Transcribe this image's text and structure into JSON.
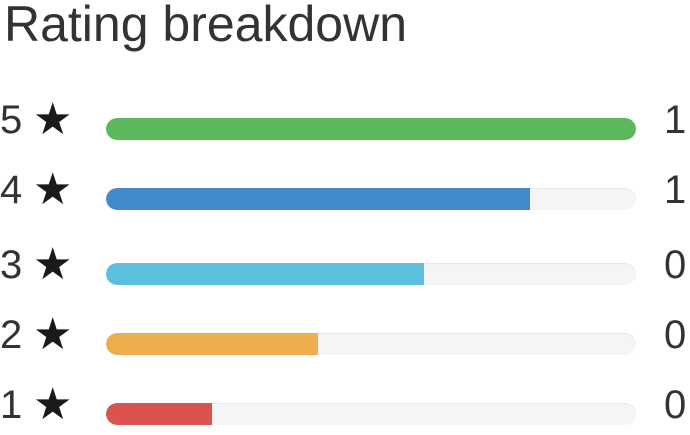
{
  "title": "Rating breakdown",
  "star_glyph": "★",
  "rows": [
    {
      "stars": "5",
      "count": "1",
      "fill_percent": 100,
      "color": "#5cb85c"
    },
    {
      "stars": "4",
      "count": "1",
      "fill_percent": 80,
      "color": "#428bca"
    },
    {
      "stars": "3",
      "count": "0",
      "fill_percent": 60,
      "color": "#5bc0de"
    },
    {
      "stars": "2",
      "count": "0",
      "fill_percent": 40,
      "color": "#f0ad4e"
    },
    {
      "stars": "1",
      "count": "0",
      "fill_percent": 20,
      "color": "#d9534f"
    }
  ]
}
